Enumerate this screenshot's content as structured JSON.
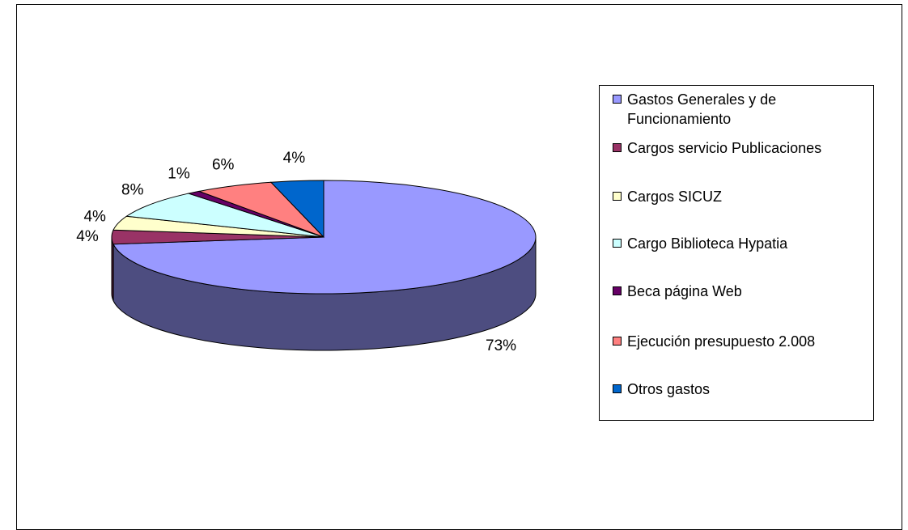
{
  "chart_data": {
    "type": "pie",
    "categories": [
      "Gastos Generales y de Funcionamiento",
      "Cargos servicio Publicaciones",
      "Cargos SICUZ",
      "Cargo Biblioteca Hypatia",
      "Beca página Web",
      "Ejecución presupuesto 2.008",
      "Otros gastos"
    ],
    "values": [
      73,
      4,
      4,
      8,
      1,
      6,
      4
    ],
    "value_labels": [
      "73%",
      "4%",
      "4%",
      "8%",
      "1%",
      "6%",
      "4%"
    ],
    "colors": [
      "#9999ff",
      "#993366",
      "#ffffcc",
      "#ccffff",
      "#660066",
      "#ff8080",
      "#0066cc"
    ],
    "legend": "right"
  }
}
